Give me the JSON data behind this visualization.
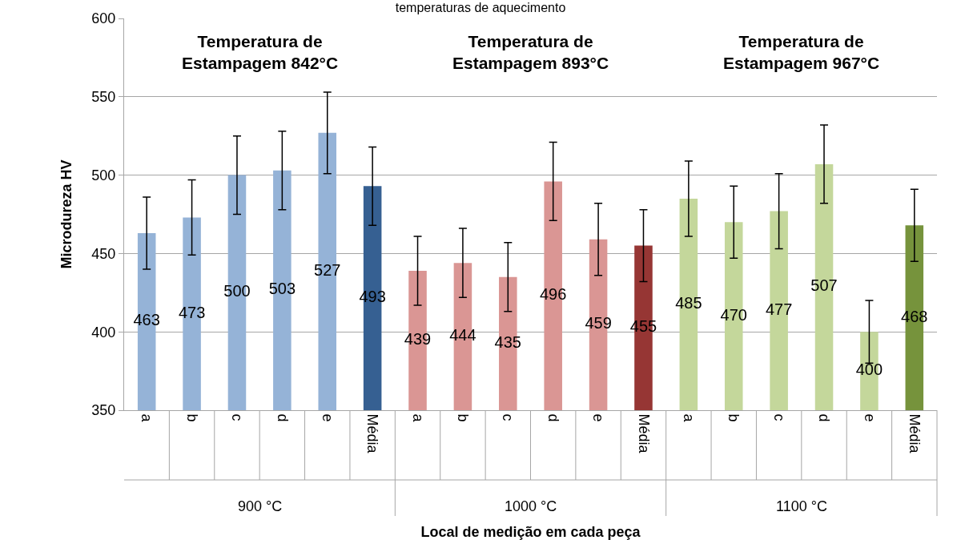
{
  "chart_data": {
    "type": "bar",
    "title": "temperaturas de aquecimento",
    "xlabel": "Local de medição em cada peça",
    "ylabel": "Microdureza HV",
    "categories": [
      "a",
      "b",
      "c",
      "d",
      "e",
      "Média",
      "a",
      "b",
      "c",
      "d",
      "e",
      "Média",
      "a",
      "b",
      "c",
      "d",
      "e",
      "Média"
    ],
    "values": [
      463,
      473,
      500,
      503,
      527,
      493,
      439,
      444,
      435,
      496,
      459,
      455,
      485,
      470,
      477,
      507,
      400,
      468
    ],
    "errors": [
      23,
      24,
      25,
      25,
      26,
      25,
      22,
      22,
      22,
      25,
      23,
      23,
      24,
      23,
      24,
      25,
      20,
      23
    ],
    "colors": [
      "#95b3d7",
      "#95b3d7",
      "#95b3d7",
      "#95b3d7",
      "#95b3d7",
      "#366092",
      "#da9694",
      "#da9694",
      "#da9694",
      "#da9694",
      "#da9694",
      "#963634",
      "#c4d79b",
      "#c4d79b",
      "#c4d79b",
      "#c4d79b",
      "#c4d79b",
      "#76933c"
    ],
    "annotations": [
      "Temperatura de\nEstampagem 842°C",
      "Temperatura de\nEstampagem 893°C",
      "Temperatura de\nEstampagem 967°C",
      "900 °C",
      "1000 °C",
      "1100 °C"
    ],
    "ylim": [
      350,
      600
    ],
    "yticks": [
      350,
      400,
      450,
      500,
      550,
      600
    ],
    "grid": "y",
    "data_labels": true
  }
}
